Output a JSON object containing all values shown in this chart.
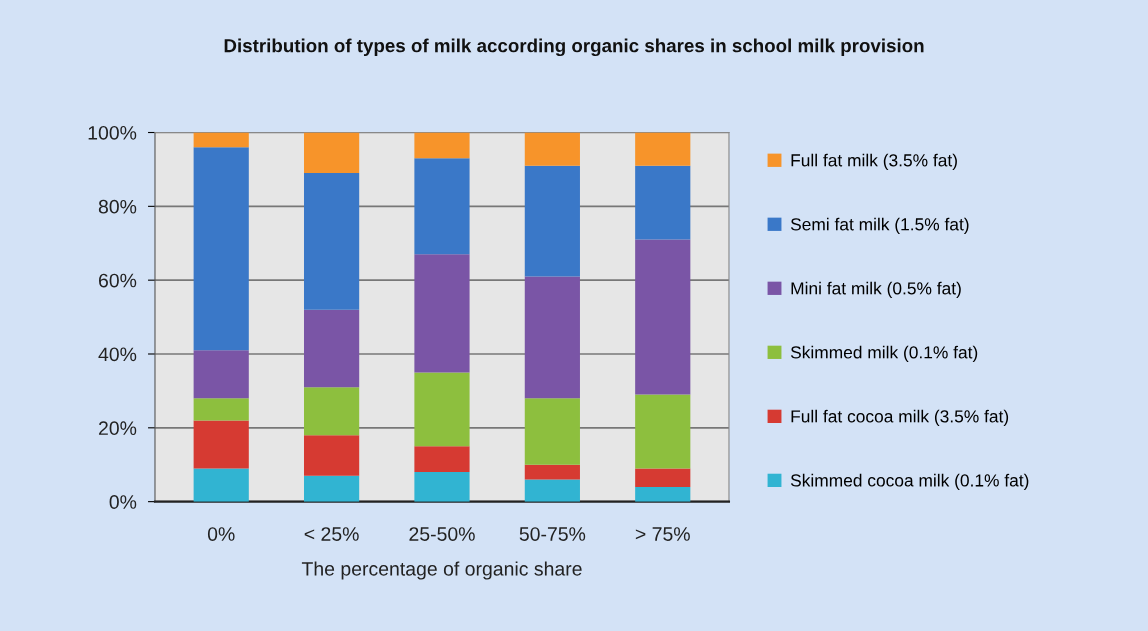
{
  "chart_data": {
    "type": "bar",
    "stacked": true,
    "title": "Distribution of types of milk according organic shares in school milk provision",
    "xlabel": "The percentage of organic share",
    "categories": [
      "0%",
      "< 25%",
      "25-50%",
      "50-75%",
      "> 75%"
    ],
    "series": [
      {
        "name": "Skimmed cocoa milk (0.1% fat)",
        "color": "#31b4d2",
        "values": [
          9,
          7,
          8,
          6,
          4
        ]
      },
      {
        "name": "Full fat cocoa milk (3.5% fat)",
        "color": "#d63a32",
        "values": [
          13,
          11,
          7,
          4,
          5
        ]
      },
      {
        "name": "Skimmed milk (0.1% fat)",
        "color": "#8dbf3e",
        "values": [
          6,
          13,
          20,
          18,
          20
        ]
      },
      {
        "name": "Mini fat milk (0.5% fat)",
        "color": "#7a55a6",
        "values": [
          13,
          21,
          32,
          33,
          42
        ]
      },
      {
        "name": "Semi fat milk (1.5% fat)",
        "color": "#3a78c8",
        "values": [
          55,
          37,
          26,
          30,
          20
        ]
      },
      {
        "name": "Full fat milk (3.5% fat)",
        "color": "#f7942a",
        "values": [
          4,
          11,
          7,
          9,
          9
        ]
      }
    ],
    "ylim": [
      0,
      100
    ],
    "yticks": [
      {
        "value": 0,
        "label": "0%"
      },
      {
        "value": 20,
        "label": "20%"
      },
      {
        "value": 40,
        "label": "40%"
      },
      {
        "value": 60,
        "label": "60%"
      },
      {
        "value": 80,
        "label": "80%"
      },
      {
        "value": 100,
        "label": "100%"
      }
    ],
    "grid": "y",
    "legend": "right"
  }
}
